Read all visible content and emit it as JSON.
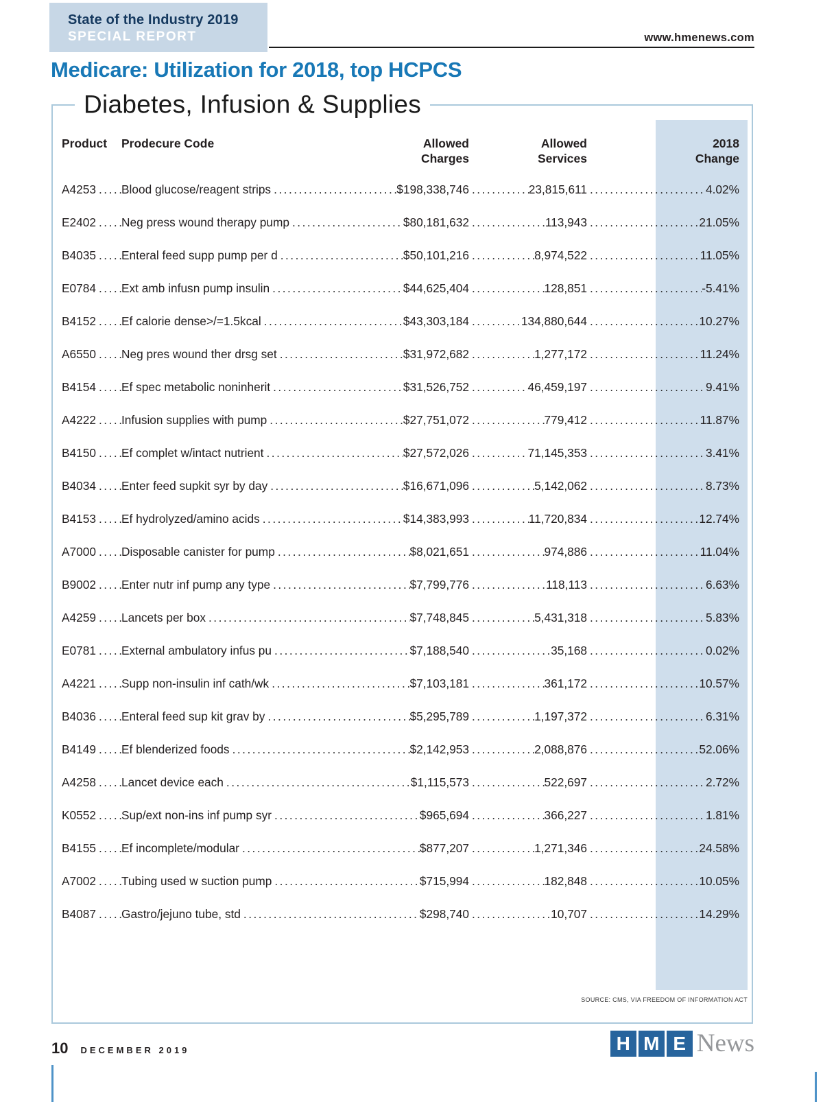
{
  "masthead": {
    "badge_line1": "State of the Industry 2019",
    "badge_line2": "SPECIAL REPORT",
    "website": "www.hmenews.com"
  },
  "article": {
    "title": "Medicare: Utilization for 2018, top HCPCS",
    "section_title": "Diabetes, Infusion & Supplies",
    "source_note": "SOURCE: CMS, VIA FREEDOM OF INFORMATION ACT"
  },
  "table": {
    "headers": {
      "product": "Product",
      "code": "Prodecure Code",
      "charges": "Allowed\nCharges",
      "services": "Allowed\nServices",
      "change": "2018\nChange"
    },
    "rows": [
      {
        "code": "A4253",
        "desc": "Blood glucose/reagent strips",
        "charges": "$198,338,746",
        "services": "23,815,611",
        "change": "4.02%"
      },
      {
        "code": "E2402",
        "desc": "Neg press wound therapy pump",
        "charges": "$80,181,632",
        "services": "113,943",
        "change": "21.05%"
      },
      {
        "code": "B4035",
        "desc": "Enteral feed supp pump per d",
        "charges": "$50,101,216",
        "services": "8,974,522",
        "change": "11.05%"
      },
      {
        "code": "E0784",
        "desc": "Ext amb infusn pump insulin",
        "charges": "$44,625,404",
        "services": "128,851",
        "change": "-5.41%"
      },
      {
        "code": "B4152",
        "desc": "Ef calorie dense>/=1.5kcal",
        "charges": "$43,303,184",
        "services": "134,880,644",
        "change": "10.27%"
      },
      {
        "code": "A6550",
        "desc": "Neg pres wound ther drsg set",
        "charges": "$31,972,682",
        "services": "1,277,172",
        "change": "11.24%"
      },
      {
        "code": "B4154",
        "desc": "Ef spec metabolic noninherit",
        "charges": "$31,526,752",
        "services": "46,459,197",
        "change": "9.41%"
      },
      {
        "code": "A4222",
        "desc": "Infusion supplies with pump",
        "charges": "$27,751,072",
        "services": "779,412",
        "change": "11.87%"
      },
      {
        "code": "B4150",
        "desc": "Ef complet w/intact nutrient",
        "charges": "$27,572,026",
        "services": "71,145,353",
        "change": "3.41%"
      },
      {
        "code": "B4034",
        "desc": "Enter feed supkit syr by day",
        "charges": "$16,671,096",
        "services": "5,142,062",
        "change": "8.73%"
      },
      {
        "code": "B4153",
        "desc": "Ef hydrolyzed/amino acids",
        "charges": "$14,383,993",
        "services": "11,720,834",
        "change": "12.74%"
      },
      {
        "code": "A7000",
        "desc": "Disposable canister for pump",
        "charges": "$8,021,651",
        "services": "974,886",
        "change": "11.04%"
      },
      {
        "code": "B9002",
        "desc": "Enter nutr inf pump any type",
        "charges": "$7,799,776",
        "services": "118,113",
        "change": "6.63%"
      },
      {
        "code": "A4259",
        "desc": "Lancets per box",
        "charges": "$7,748,845",
        "services": "5,431,318",
        "change": "5.83%"
      },
      {
        "code": "E0781",
        "desc": "External ambulatory infus pu",
        "charges": "$7,188,540",
        "services": "35,168",
        "change": "0.02%"
      },
      {
        "code": "A4221",
        "desc": "Supp non-insulin inf cath/wk",
        "charges": "$7,103,181",
        "services": "361,172",
        "change": "10.57%"
      },
      {
        "code": "B4036",
        "desc": "Enteral feed sup kit grav by",
        "charges": "$5,295,789",
        "services": "1,197,372",
        "change": "6.31%"
      },
      {
        "code": "B4149",
        "desc": "Ef blenderized foods",
        "charges": "$2,142,953",
        "services": "2,088,876",
        "change": "52.06%"
      },
      {
        "code": "A4258",
        "desc": "Lancet device each",
        "charges": "$1,115,573",
        "services": "522,697",
        "change": "2.72%"
      },
      {
        "code": "K0552",
        "desc": "Sup/ext non-ins inf pump syr",
        "charges": "$965,694",
        "services": "366,227",
        "change": "1.81%"
      },
      {
        "code": "B4155",
        "desc": "Ef incomplete/modular",
        "charges": "$877,207",
        "services": "1,271,346",
        "change": "24.58%"
      },
      {
        "code": "A7002",
        "desc": "Tubing used w suction pump",
        "charges": "$715,994",
        "services": "182,848",
        "change": "10.05%"
      },
      {
        "code": "B4087",
        "desc": "Gastro/jejuno tube, std",
        "charges": "$298,740",
        "services": "10,707",
        "change": "14.29%"
      }
    ]
  },
  "footer": {
    "page_number": "10",
    "date": "DECEMBER 2019",
    "logo": {
      "letters": [
        "H",
        "M",
        "E"
      ],
      "suffix": "News"
    }
  },
  "colors": {
    "title_blue": "#1878b6",
    "badge_bg": "#c7d7e6",
    "badge_navy": "#15395f",
    "stripe_blue": "#cfdeec",
    "box_border": "#abc9dc",
    "logo_blue": "#27649d",
    "logo_gray": "#95979a",
    "text": "#231f20"
  }
}
